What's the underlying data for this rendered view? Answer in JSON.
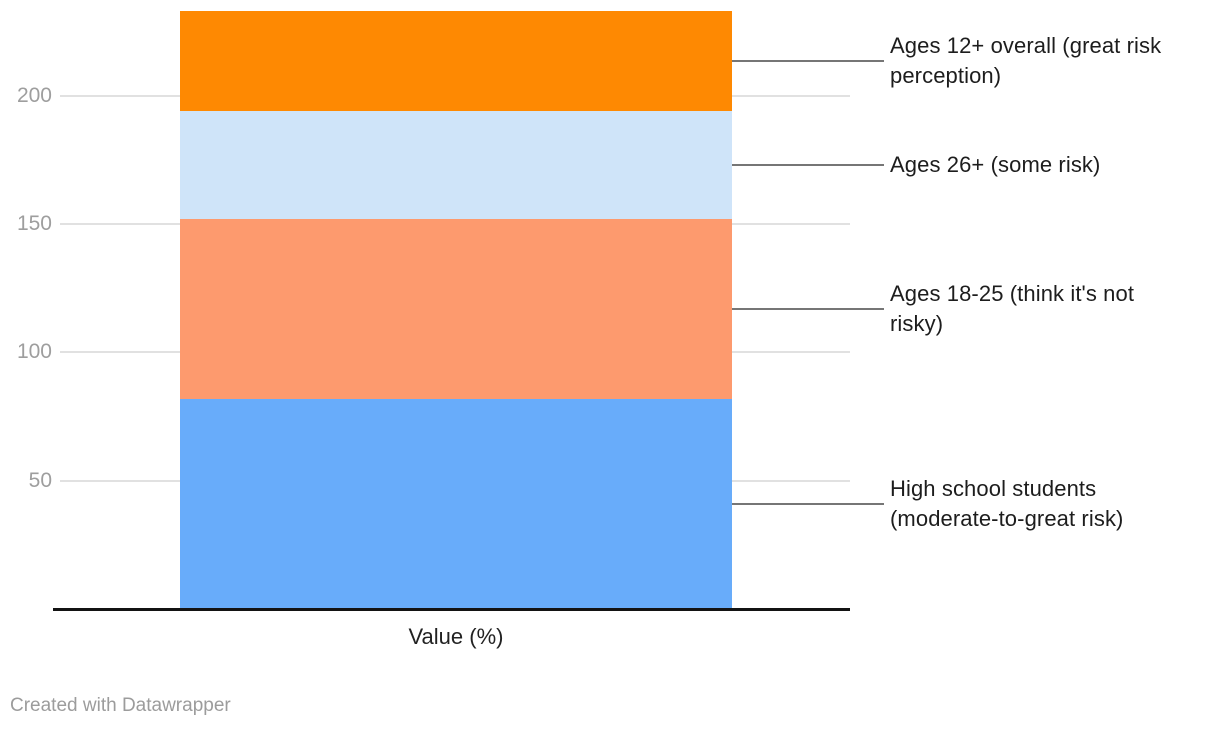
{
  "chart_data": {
    "type": "bar",
    "subtype": "single-stacked-column",
    "title": "",
    "xlabel": "Value (%)",
    "ylabel": "",
    "ylim": [
      0,
      233
    ],
    "yticks": [
      50,
      100,
      150,
      200
    ],
    "grid": true,
    "legend_position": "right-leader-labels",
    "series": [
      {
        "id": "high-school-students",
        "name": "High school students (moderate-to-great risk)",
        "label_lines": [
          "High school students",
          "(moderate-to-great risk)"
        ],
        "value": 82,
        "color": "#68acfa"
      },
      {
        "id": "ages-18-25",
        "name": "Ages 18-25 (think it's not risky)",
        "label_lines": [
          "Ages 18-25 (think it's not",
          "risky)"
        ],
        "value": 70,
        "color": "#fd9a6e"
      },
      {
        "id": "ages-26-plus",
        "name": "Ages 26+ (some risk)",
        "label_lines": [
          "Ages 26+ (some risk)"
        ],
        "value": 42,
        "color": "#cfe4f9"
      },
      {
        "id": "ages-12-plus-overall",
        "name": "Ages 12+ overall (great risk perception)",
        "label_lines": [
          "Ages 12+ overall (great risk",
          "perception)"
        ],
        "value": 39,
        "color": "#fe8902"
      }
    ]
  },
  "footer": {
    "credit": "Created with Datawrapper"
  },
  "colors": {
    "background": "#ffffff",
    "gridline": "#e1e1e1",
    "axis_line": "#131313",
    "tick_text": "#9e9e9e",
    "label_text": "#1d1d1d",
    "axis_label_text": "#222222",
    "leader_line": "#767676",
    "footer_text": "#9c9c9c"
  }
}
